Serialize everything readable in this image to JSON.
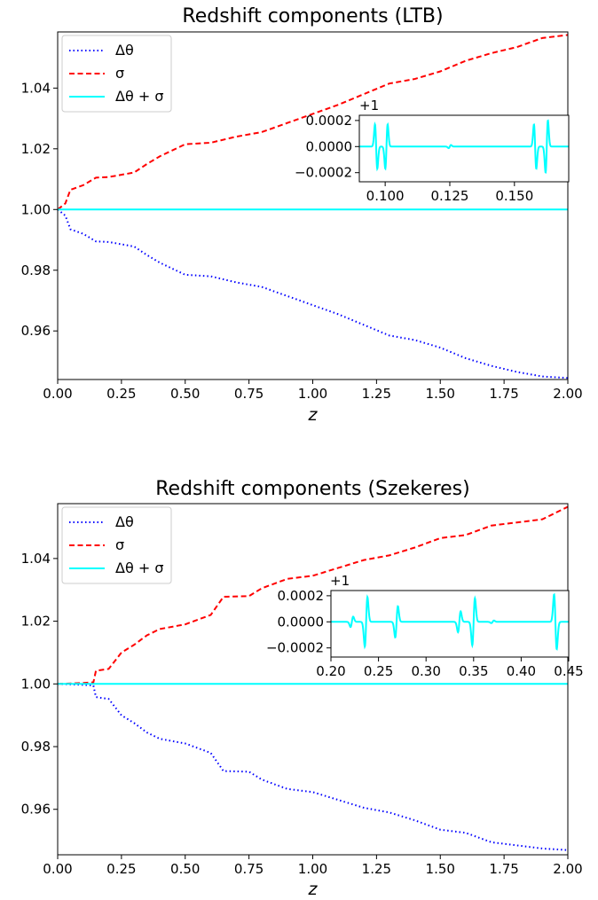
{
  "chart_data": [
    {
      "type": "line",
      "title": "Redshift components (LTB)",
      "xlabel": "z",
      "ylabel": "",
      "xlim": [
        0,
        2.0
      ],
      "ylim": [
        0.944,
        1.0585
      ],
      "xticks": [
        "0.00",
        "0.25",
        "0.50",
        "0.75",
        "1.00",
        "1.25",
        "1.50",
        "1.75",
        "2.00"
      ],
      "xtick_values": [
        0,
        0.25,
        0.5,
        0.75,
        1.0,
        1.25,
        1.5,
        1.75,
        2.0
      ],
      "yticks": [
        "0.96",
        "0.98",
        "1.00",
        "1.02",
        "1.04"
      ],
      "ytick_values": [
        0.96,
        0.98,
        1.0,
        1.02,
        1.04
      ],
      "legend": {
        "position": "upper-left",
        "entries": [
          "Δθ",
          "σ",
          "Δθ + σ"
        ]
      },
      "series": [
        {
          "name": "Δθ",
          "color": "#0000ff",
          "style": "dotted",
          "x": [
            0,
            0.03,
            0.05,
            0.1,
            0.15,
            0.2,
            0.3,
            0.35,
            0.4,
            0.5,
            0.6,
            0.7,
            0.8,
            0.9,
            1.0,
            1.1,
            1.2,
            1.3,
            1.4,
            1.5,
            1.6,
            1.7,
            1.8,
            1.9,
            2.0
          ],
          "values": [
            1.0,
            0.998,
            0.9935,
            0.992,
            0.9895,
            0.9893,
            0.9878,
            0.985,
            0.9825,
            0.9785,
            0.978,
            0.976,
            0.9745,
            0.9715,
            0.9685,
            0.9655,
            0.962,
            0.9585,
            0.957,
            0.9545,
            0.951,
            0.9485,
            0.9465,
            0.945,
            0.9445
          ]
        },
        {
          "name": "σ",
          "color": "#ff0000",
          "style": "dashed",
          "x": [
            0,
            0.03,
            0.05,
            0.1,
            0.15,
            0.2,
            0.3,
            0.35,
            0.4,
            0.5,
            0.6,
            0.7,
            0.8,
            0.9,
            1.0,
            1.1,
            1.2,
            1.3,
            1.4,
            1.5,
            1.6,
            1.7,
            1.8,
            1.9,
            2.0
          ],
          "values": [
            1.0,
            1.002,
            1.0065,
            1.008,
            1.0105,
            1.0107,
            1.0122,
            1.015,
            1.0175,
            1.0215,
            1.022,
            1.024,
            1.0255,
            1.0285,
            1.0315,
            1.0345,
            1.038,
            1.0415,
            1.043,
            1.0455,
            1.049,
            1.0515,
            1.0535,
            1.0565,
            1.0575
          ]
        },
        {
          "name": "Δθ + σ",
          "color": "#00ffff",
          "style": "solid",
          "x": [
            0,
            2.0
          ],
          "values": [
            1.0,
            1.0
          ]
        }
      ],
      "inset": {
        "offset_label": "+1",
        "xlim": [
          0.09,
          0.171
        ],
        "ylim": [
          -0.00027,
          0.00024
        ],
        "xticks": [
          "0.100",
          "0.125",
          "0.150"
        ],
        "xtick_values": [
          0.1,
          0.125,
          0.15
        ],
        "yticks": [
          "0.0002",
          "0.0000",
          "−0.0002"
        ],
        "ytick_values": [
          0.0002,
          0.0,
          -0.0002
        ],
        "spikes": [
          {
            "x": 0.0965,
            "amplitude": -0.00017,
            "lead": "down"
          },
          {
            "x": 0.1005,
            "amplitude": 0.00017,
            "lead": "up"
          },
          {
            "x": 0.125,
            "amplitude": 1.2e-05,
            "lead": "up"
          },
          {
            "x": 0.158,
            "amplitude": -0.00017,
            "lead": "down"
          },
          {
            "x": 0.1625,
            "amplitude": 0.0002,
            "lead": "up"
          }
        ]
      }
    },
    {
      "type": "line",
      "title": "Redshift components (Szekeres)",
      "xlabel": "z",
      "ylabel": "",
      "xlim": [
        0,
        2.0
      ],
      "ylim": [
        0.9455,
        1.0575
      ],
      "xticks": [
        "0.00",
        "0.25",
        "0.50",
        "0.75",
        "1.00",
        "1.25",
        "1.50",
        "1.75",
        "2.00"
      ],
      "xtick_values": [
        0,
        0.25,
        0.5,
        0.75,
        1.0,
        1.25,
        1.5,
        1.75,
        2.0
      ],
      "yticks": [
        "0.96",
        "0.98",
        "1.00",
        "1.02",
        "1.04"
      ],
      "ytick_values": [
        0.96,
        0.98,
        1.0,
        1.02,
        1.04
      ],
      "legend": {
        "position": "upper-left",
        "entries": [
          "Δθ",
          "σ",
          "Δθ + σ"
        ]
      },
      "series": [
        {
          "name": "Δθ",
          "color": "#0000ff",
          "style": "dotted",
          "x": [
            0,
            0.1,
            0.14,
            0.15,
            0.2,
            0.25,
            0.3,
            0.35,
            0.4,
            0.5,
            0.6,
            0.65,
            0.75,
            0.8,
            0.9,
            1.0,
            1.1,
            1.2,
            1.3,
            1.4,
            1.5,
            1.6,
            1.7,
            1.8,
            1.9,
            2.0
          ],
          "values": [
            1.0,
            0.9997,
            0.9995,
            0.9958,
            0.9952,
            0.99,
            0.9875,
            0.9845,
            0.9825,
            0.981,
            0.978,
            0.9722,
            0.972,
            0.9695,
            0.9665,
            0.9655,
            0.963,
            0.9605,
            0.959,
            0.9565,
            0.9535,
            0.9525,
            0.9495,
            0.9485,
            0.9475,
            0.947
          ]
        },
        {
          "name": "σ",
          "color": "#ff0000",
          "style": "dashed",
          "x": [
            0,
            0.1,
            0.14,
            0.15,
            0.2,
            0.25,
            0.3,
            0.35,
            0.4,
            0.5,
            0.6,
            0.65,
            0.75,
            0.8,
            0.9,
            1.0,
            1.1,
            1.2,
            1.3,
            1.4,
            1.5,
            1.6,
            1.7,
            1.8,
            1.9,
            2.0
          ],
          "values": [
            1.0,
            1.0003,
            1.0005,
            1.0042,
            1.0048,
            1.01,
            1.0125,
            1.0155,
            1.0175,
            1.019,
            1.022,
            1.0278,
            1.028,
            1.0305,
            1.0335,
            1.0345,
            1.037,
            1.0395,
            1.041,
            1.0435,
            1.0465,
            1.0475,
            1.0505,
            1.0515,
            1.0525,
            1.0565
          ]
        },
        {
          "name": "Δθ + σ",
          "color": "#00ffff",
          "style": "solid",
          "x": [
            0,
            2.0
          ],
          "values": [
            1.0,
            1.0
          ]
        }
      ],
      "inset": {
        "offset_label": "+1",
        "xlim": [
          0.2,
          0.45
        ],
        "ylim": [
          -0.00027,
          0.00024
        ],
        "xticks": [
          "0.20",
          "0.25",
          "0.30",
          "0.35",
          "0.40",
          "0.45"
        ],
        "xtick_values": [
          0.2,
          0.25,
          0.3,
          0.35,
          0.4,
          0.45
        ],
        "yticks": [
          "0.0002",
          "0.0000",
          "−0.0002"
        ],
        "ytick_values": [
          0.0002,
          0.0,
          -0.0002
        ],
        "spikes": [
          {
            "x": 0.222,
            "amplitude": 4e-05,
            "lead": "up"
          },
          {
            "x": 0.237,
            "amplitude": 0.00019,
            "lead": "up"
          },
          {
            "x": 0.269,
            "amplitude": 0.00012,
            "lead": "up"
          },
          {
            "x": 0.335,
            "amplitude": 8e-05,
            "lead": "up"
          },
          {
            "x": 0.35,
            "amplitude": 0.00018,
            "lead": "up"
          },
          {
            "x": 0.37,
            "amplitude": 1e-05,
            "lead": "up"
          },
          {
            "x": 0.436,
            "amplitude": 0.00021,
            "lead": "down"
          }
        ]
      }
    }
  ]
}
